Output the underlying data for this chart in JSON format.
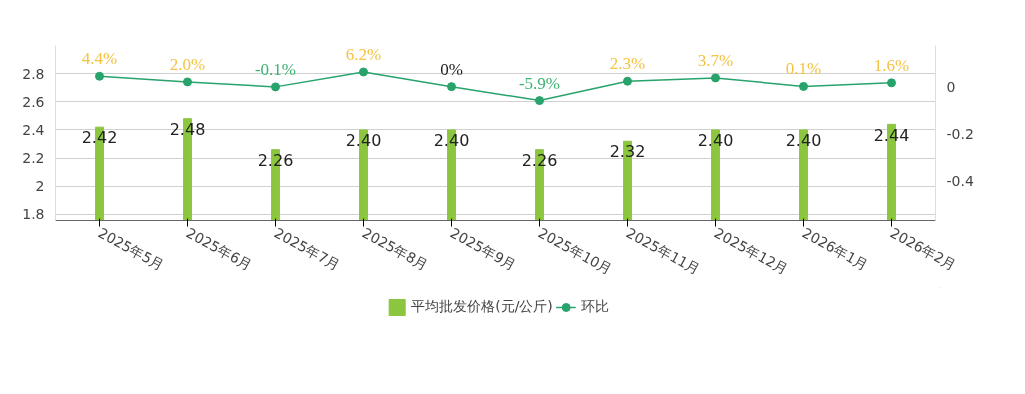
{
  "chart_data": {
    "type": "bar",
    "categories": [
      "2025年5月",
      "2025年6月",
      "2025年7月",
      "2025年8月",
      "2025年9月",
      "2025年10月",
      "2025年11月",
      "2025年12月",
      "2026年1月",
      "2026年2月"
    ],
    "series": [
      {
        "name": "平均批发价格(元/公斤)",
        "color": "#8cc63f",
        "values": [
          2.42,
          2.48,
          2.26,
          2.4,
          2.4,
          2.26,
          2.32,
          2.4,
          2.4,
          2.44
        ],
        "value_labels": [
          "2.42",
          "2.48",
          "2.26",
          "2.40",
          "2.40",
          "2.26",
          "2.32",
          "2.40",
          "2.40",
          "2.44"
        ]
      },
      {
        "name": "环比",
        "type": "line",
        "axis": "y2",
        "color": "#27a36b",
        "marker": "circle",
        "values": [
          0.044,
          0.02,
          -0.001,
          0.062,
          0,
          -0.059,
          0.023,
          0.037,
          0.001,
          0.016
        ],
        "value_labels": [
          "4.4%",
          "2.0%",
          "-0.1%",
          "6.2%",
          "0%",
          "-5.9%",
          "2.3%",
          "3.7%",
          "0.1%",
          "1.6%"
        ]
      }
    ],
    "ylim": [
      1.757,
      3.0
    ],
    "yticks": [
      {
        "value": 1.8,
        "label": "1.8"
      },
      2,
      2.2,
      2.4,
      2.6,
      2.8
    ],
    "y2lim": [
      -0.566,
      0.174
    ],
    "y2ticks": [
      {
        "value": -0.4,
        "label": "-0.4"
      },
      {
        "value": -0.2,
        "label": "-0.2"
      },
      0
    ],
    "grid": "y",
    "legend": "bottom"
  }
}
